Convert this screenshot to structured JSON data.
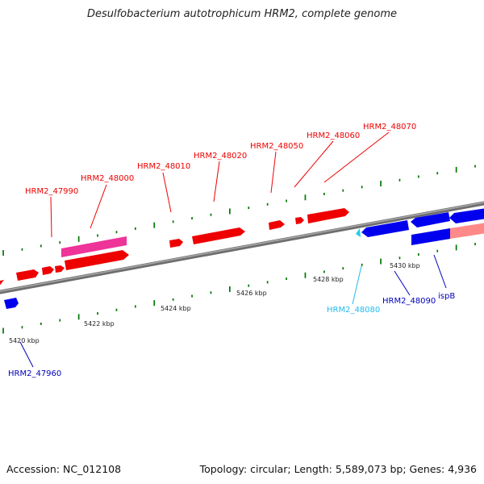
{
  "title": "Desulfobacterium autotrophicum HRM2, complete genome",
  "footer": {
    "accession": "Accession: NC_012108",
    "summary": "Topology: circular; Length: 5,589,073 bp; Genes: 4,936"
  },
  "colors": {
    "forward_gene": "#ff0000",
    "forward_gene_alt": "#ff3399",
    "reverse_gene": "#0000ee",
    "reverse_gene_light": "#ff8888",
    "rna_gene": "#22ccee",
    "backbone": "#808080",
    "ticks": "#007700"
  },
  "ticks": [
    {
      "label": "5420 kbp"
    },
    {
      "label": "5422 kbp"
    },
    {
      "label": "5424 kbp"
    },
    {
      "label": "5426 kbp"
    },
    {
      "label": "5428 kbp"
    },
    {
      "label": "5430 kbp"
    }
  ],
  "gene_labels": [
    {
      "text": "HRM2_47990",
      "strand": "forward"
    },
    {
      "text": "HRM2_48000",
      "strand": "forward"
    },
    {
      "text": "HRM2_48010",
      "strand": "forward"
    },
    {
      "text": "HRM2_48020",
      "strand": "forward"
    },
    {
      "text": "HRM2_48050",
      "strand": "forward"
    },
    {
      "text": "HRM2_48060",
      "strand": "forward"
    },
    {
      "text": "HRM2_48070",
      "strand": "forward"
    },
    {
      "text": "HRM2_48080",
      "strand": "rna"
    },
    {
      "text": "HRM2_48090",
      "strand": "reverse"
    },
    {
      "text": "ispB",
      "strand": "reverse"
    },
    {
      "text": "HRM2_47960",
      "strand": "reverse"
    }
  ]
}
